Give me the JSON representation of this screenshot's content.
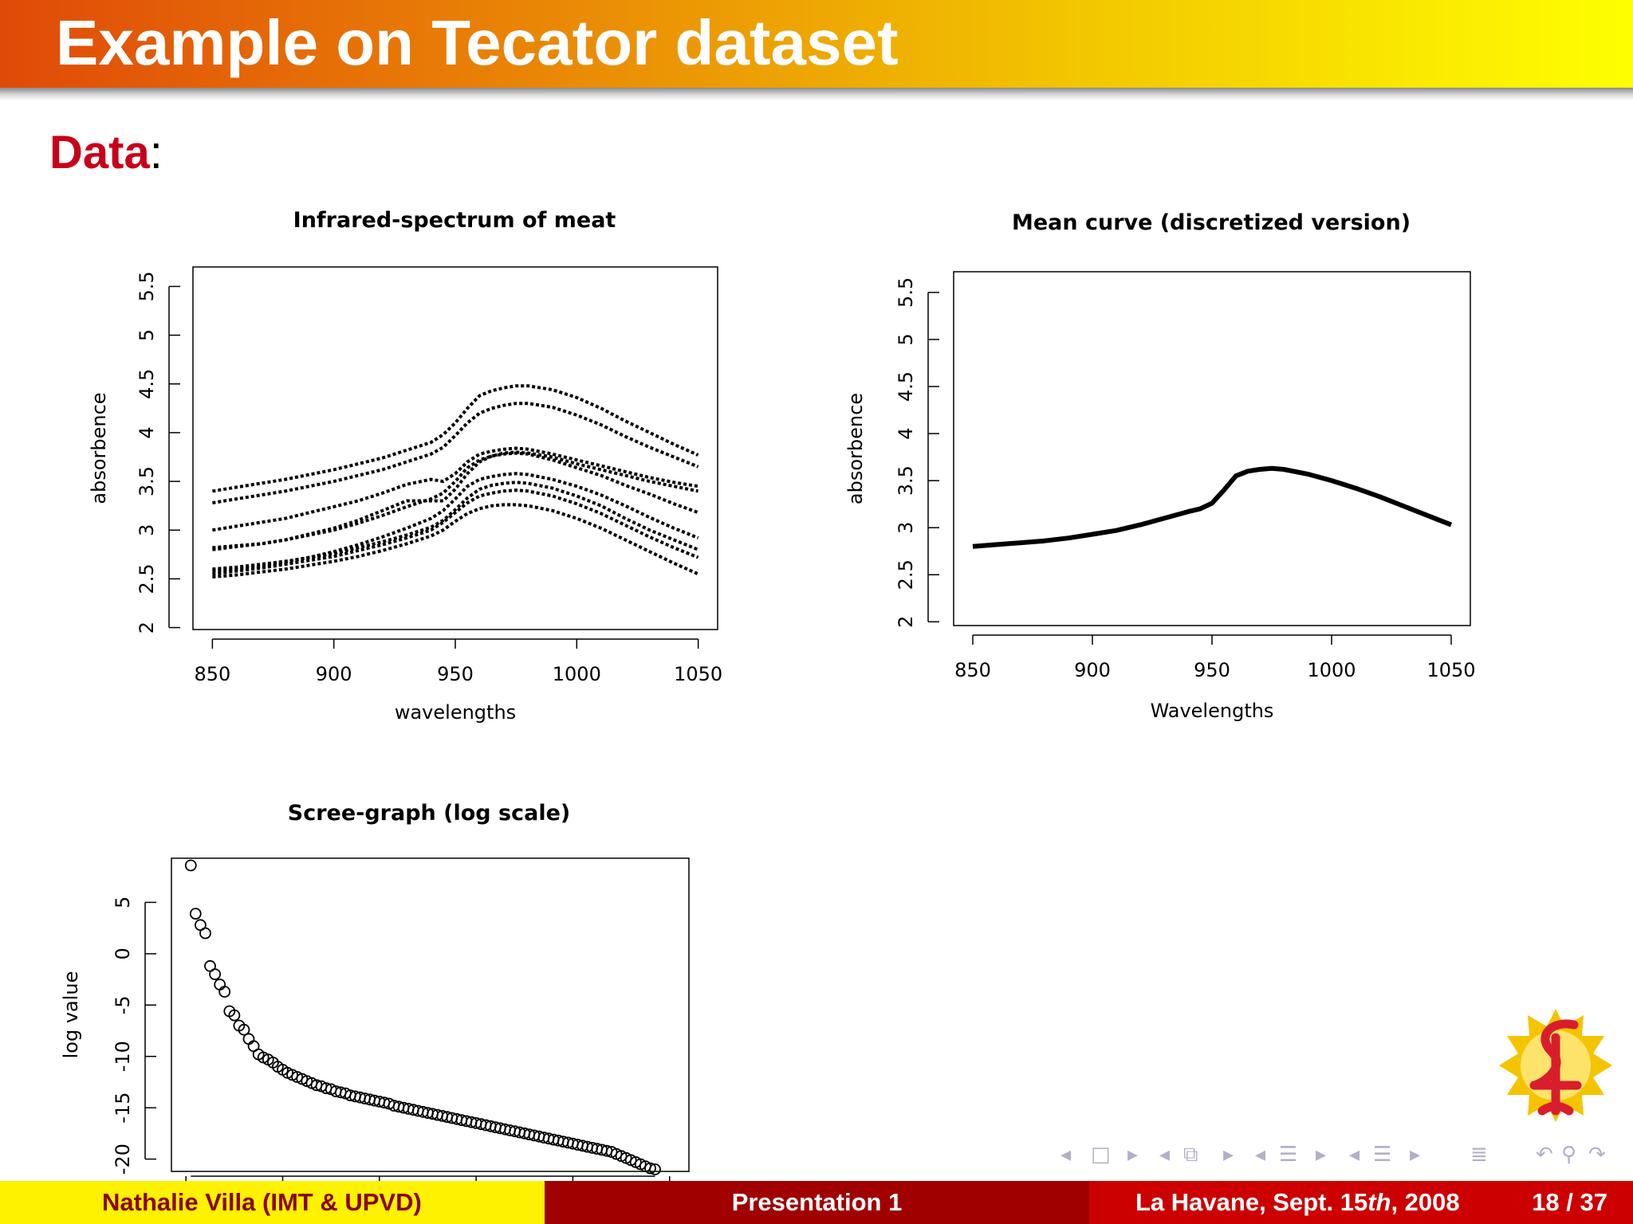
{
  "slide": {
    "frame_title": "Example on Tecator dataset",
    "block_title": "Data",
    "block_colon": ":"
  },
  "footer": {
    "author": "Nathalie Villa  (IMT & UPVD)",
    "title": "Presentation 1",
    "date_prefix": "La Havane, Sept. 15",
    "date_sup": "th",
    "date_suffix": ", 2008",
    "page": "18 / 37"
  },
  "navigation": {
    "icons": [
      "nav-left-arrow-icon",
      "frame-icon",
      "nav-right-arrow-icon",
      "nav-left-arrow-icon",
      "subsection-icon",
      "nav-right-arrow-icon",
      "nav-left-arrow-icon",
      "section-icon",
      "nav-right-arrow-icon",
      "nav-left-arrow-icon",
      "presentation-icon",
      "nav-right-arrow-icon",
      "align-icon",
      "undo-icon",
      "search-icon",
      "redo-icon"
    ]
  },
  "colors": {
    "title_text": "#ffffff",
    "block_title": "#c8001a",
    "footer_left_bg": "#fff200",
    "footer_left_text": "#8b0000",
    "footer_mid_bg": "#a00000",
    "footer_right_bg": "#cc0000",
    "series": "#000000"
  },
  "chart_data": [
    {
      "type": "line",
      "title": "Infrared-spectrum of meat",
      "xlabel": "wavelengths",
      "ylabel": "absorbence",
      "xlim": [
        842,
        1058
      ],
      "ylim": [
        1.98,
        5.7
      ],
      "xticks": [
        850,
        900,
        950,
        1000,
        1050
      ],
      "yticks": [
        2.0,
        2.5,
        3.0,
        3.5,
        4.0,
        4.5,
        5.0,
        5.5
      ],
      "x": [
        850,
        860,
        870,
        880,
        890,
        900,
        910,
        920,
        930,
        940,
        945,
        950,
        955,
        960,
        965,
        970,
        975,
        980,
        990,
        1000,
        1010,
        1020,
        1030,
        1040,
        1050
      ],
      "series": [
        {
          "values": [
            3.4,
            3.44,
            3.48,
            3.52,
            3.57,
            3.62,
            3.68,
            3.74,
            3.82,
            3.9,
            3.98,
            4.1,
            4.25,
            4.38,
            4.43,
            4.46,
            4.48,
            4.48,
            4.44,
            4.36,
            4.25,
            4.12,
            4.0,
            3.88,
            3.77
          ]
        },
        {
          "values": [
            3.28,
            3.32,
            3.36,
            3.4,
            3.45,
            3.5,
            3.56,
            3.62,
            3.7,
            3.78,
            3.85,
            3.97,
            4.1,
            4.2,
            4.25,
            4.28,
            4.3,
            4.3,
            4.26,
            4.18,
            4.08,
            3.96,
            3.85,
            3.75,
            3.65
          ]
        },
        {
          "values": [
            3.0,
            3.04,
            3.08,
            3.12,
            3.18,
            3.24,
            3.3,
            3.38,
            3.47,
            3.52,
            3.5,
            3.58,
            3.7,
            3.78,
            3.81,
            3.83,
            3.84,
            3.83,
            3.78,
            3.72,
            3.66,
            3.6,
            3.54,
            3.49,
            3.45
          ]
        },
        {
          "values": [
            2.82,
            2.84,
            2.86,
            2.9,
            2.96,
            3.02,
            3.1,
            3.2,
            3.3,
            3.3,
            3.3,
            3.42,
            3.58,
            3.7,
            3.76,
            3.79,
            3.8,
            3.79,
            3.75,
            3.68,
            3.62,
            3.56,
            3.5,
            3.45,
            3.4
          ]
        },
        {
          "values": [
            2.8,
            2.83,
            2.86,
            2.9,
            2.95,
            3.0,
            3.07,
            3.15,
            3.24,
            3.32,
            3.38,
            3.5,
            3.64,
            3.72,
            3.76,
            3.78,
            3.79,
            3.78,
            3.72,
            3.64,
            3.56,
            3.46,
            3.37,
            3.27,
            3.18
          ]
        },
        {
          "values": [
            2.58,
            2.6,
            2.63,
            2.67,
            2.72,
            2.78,
            2.85,
            2.93,
            3.02,
            3.12,
            3.2,
            3.32,
            3.45,
            3.52,
            3.55,
            3.57,
            3.58,
            3.57,
            3.52,
            3.45,
            3.36,
            3.25,
            3.13,
            3.02,
            2.92
          ]
        },
        {
          "values": [
            2.6,
            2.62,
            2.65,
            2.68,
            2.72,
            2.76,
            2.82,
            2.88,
            2.95,
            3.03,
            3.1,
            3.21,
            3.33,
            3.42,
            3.46,
            3.48,
            3.49,
            3.48,
            3.43,
            3.35,
            3.25,
            3.12,
            3.0,
            2.9,
            2.8
          ]
        },
        {
          "values": [
            2.55,
            2.58,
            2.61,
            2.65,
            2.69,
            2.73,
            2.79,
            2.85,
            2.92,
            3.0,
            3.08,
            3.18,
            3.28,
            3.35,
            3.38,
            3.4,
            3.41,
            3.4,
            3.35,
            3.27,
            3.17,
            3.05,
            2.93,
            2.82,
            2.72
          ]
        },
        {
          "values": [
            2.52,
            2.54,
            2.57,
            2.6,
            2.64,
            2.68,
            2.73,
            2.79,
            2.86,
            2.94,
            3.0,
            3.09,
            3.17,
            3.22,
            3.25,
            3.26,
            3.26,
            3.25,
            3.2,
            3.12,
            3.02,
            2.9,
            2.78,
            2.66,
            2.55
          ]
        }
      ]
    },
    {
      "type": "line",
      "title": "Mean curve (discretized version)",
      "xlabel": "Wavelengths",
      "ylabel": "absorbence",
      "xlim": [
        842,
        1058
      ],
      "ylim": [
        1.96,
        5.72
      ],
      "xticks": [
        850,
        900,
        950,
        1000,
        1050
      ],
      "yticks": [
        2.0,
        2.5,
        3.0,
        3.5,
        4.0,
        4.5,
        5.0,
        5.5
      ],
      "x": [
        850,
        860,
        870,
        880,
        890,
        900,
        910,
        920,
        930,
        940,
        945,
        950,
        955,
        960,
        965,
        970,
        975,
        980,
        990,
        1000,
        1010,
        1020,
        1030,
        1040,
        1050
      ],
      "series": [
        {
          "values": [
            2.8,
            2.82,
            2.84,
            2.86,
            2.89,
            2.93,
            2.97,
            3.03,
            3.1,
            3.17,
            3.2,
            3.26,
            3.4,
            3.55,
            3.6,
            3.62,
            3.63,
            3.62,
            3.57,
            3.5,
            3.42,
            3.33,
            3.23,
            3.13,
            3.03
          ]
        }
      ]
    },
    {
      "type": "scatter",
      "title": "Scree-graph (log scale)",
      "xlabel": "",
      "ylabel": "log value",
      "xlim": [
        -3,
        104
      ],
      "ylim": [
        -21.2,
        9.3
      ],
      "yticks": [
        -20,
        -15,
        -10,
        -5,
        0,
        5
      ],
      "x_start": 1,
      "values": [
        8.6,
        3.9,
        2.8,
        2.0,
        -1.2,
        -2.0,
        -3.0,
        -3.7,
        -5.6,
        -6.0,
        -7.0,
        -7.4,
        -8.3,
        -9.0,
        -9.8,
        -10.1,
        -10.3,
        -10.6,
        -11.0,
        -11.3,
        -11.6,
        -11.8,
        -12.0,
        -12.2,
        -12.4,
        -12.6,
        -12.8,
        -12.9,
        -13.1,
        -13.2,
        -13.4,
        -13.5,
        -13.6,
        -13.8,
        -13.9,
        -14.0,
        -14.1,
        -14.2,
        -14.3,
        -14.4,
        -14.5,
        -14.6,
        -14.8,
        -14.9,
        -15.0,
        -15.1,
        -15.2,
        -15.3,
        -15.4,
        -15.5,
        -15.6,
        -15.7,
        -15.8,
        -15.9,
        -16.0,
        -16.1,
        -16.2,
        -16.3,
        -16.4,
        -16.5,
        -16.6,
        -16.7,
        -16.8,
        -16.9,
        -17.0,
        -17.1,
        -17.2,
        -17.3,
        -17.4,
        -17.5,
        -17.6,
        -17.7,
        -17.8,
        -17.9,
        -18.0,
        -18.1,
        -18.2,
        -18.3,
        -18.4,
        -18.5,
        -18.6,
        -18.7,
        -18.8,
        -18.9,
        -19.0,
        -19.1,
        -19.2,
        -19.3,
        -19.5,
        -19.7,
        -19.9,
        -20.1,
        -20.3,
        -20.5,
        -20.7,
        -20.9,
        -21.0
      ]
    }
  ]
}
